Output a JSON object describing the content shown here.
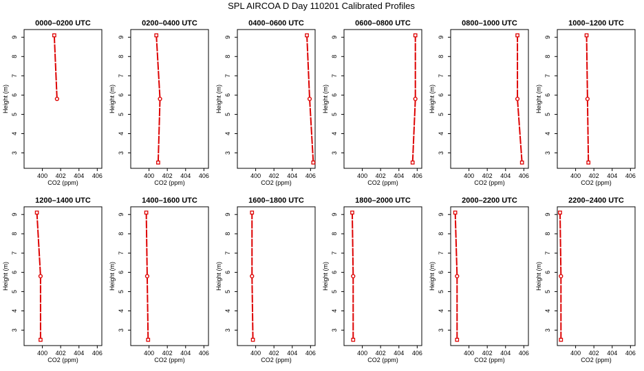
{
  "figure": {
    "title": "SPL AIRCOA D  Day 110201  Calibrated Profiles"
  },
  "style": {
    "line_color": "#dd0000",
    "marker_color": "#dd0000",
    "axis_color": "#000000",
    "background": "#ffffff"
  },
  "chart_data": [
    {
      "type": "line",
      "title": "0000–0200 UTC",
      "xlabel": "CO2 (ppm)",
      "ylabel": "Height (m)",
      "xlim": [
        398,
        406.5
      ],
      "ylim": [
        2.2,
        9.4
      ],
      "x_ticks": [
        400,
        402,
        404,
        406
      ],
      "y_ticks": [
        3,
        4,
        5,
        6,
        7,
        8,
        9
      ],
      "series": [
        {
          "x": [
            401.6,
            401.3
          ],
          "y": [
            5.8,
            9.1
          ],
          "markers": [
            "circle",
            "square"
          ]
        }
      ]
    },
    {
      "type": "line",
      "title": "0200–0400 UTC",
      "xlabel": "CO2 (ppm)",
      "ylabel": "Height (m)",
      "xlim": [
        398,
        406.5
      ],
      "ylim": [
        2.2,
        9.4
      ],
      "x_ticks": [
        400,
        402,
        404,
        406
      ],
      "y_ticks": [
        3,
        4,
        5,
        6,
        7,
        8,
        9
      ],
      "series": [
        {
          "x": [
            401.0,
            401.2,
            400.8
          ],
          "y": [
            2.5,
            5.8,
            9.1
          ],
          "markers": [
            "square",
            "circle",
            "square"
          ]
        }
      ]
    },
    {
      "type": "line",
      "title": "0400–0600 UTC",
      "xlabel": "CO2 (ppm)",
      "ylabel": "Height (m)",
      "xlim": [
        398,
        406.5
      ],
      "ylim": [
        2.2,
        9.4
      ],
      "x_ticks": [
        400,
        402,
        404,
        406
      ],
      "y_ticks": [
        3,
        4,
        5,
        6,
        7,
        8,
        9
      ],
      "series": [
        {
          "x": [
            406.3,
            405.9,
            405.6
          ],
          "y": [
            2.5,
            5.8,
            9.1
          ],
          "markers": [
            "square",
            "circle",
            "square"
          ]
        }
      ]
    },
    {
      "type": "line",
      "title": "0600–0800 UTC",
      "xlabel": "CO2 (ppm)",
      "ylabel": "Height (m)",
      "xlim": [
        398,
        406.5
      ],
      "ylim": [
        2.2,
        9.4
      ],
      "x_ticks": [
        400,
        402,
        404,
        406
      ],
      "y_ticks": [
        3,
        4,
        5,
        6,
        7,
        8,
        9
      ],
      "series": [
        {
          "x": [
            405.5,
            405.8,
            405.8
          ],
          "y": [
            2.5,
            5.8,
            9.1
          ],
          "markers": [
            "square",
            "circle",
            "square"
          ]
        }
      ]
    },
    {
      "type": "line",
      "title": "0800–1000 UTC",
      "xlabel": "CO2 (ppm)",
      "ylabel": "Height (m)",
      "xlim": [
        398,
        406.5
      ],
      "ylim": [
        2.2,
        9.4
      ],
      "x_ticks": [
        400,
        402,
        404,
        406
      ],
      "y_ticks": [
        3,
        4,
        5,
        6,
        7,
        8,
        9
      ],
      "series": [
        {
          "x": [
            405.8,
            405.3,
            405.3
          ],
          "y": [
            2.5,
            5.8,
            9.1
          ],
          "markers": [
            "square",
            "circle",
            "square"
          ]
        }
      ]
    },
    {
      "type": "line",
      "title": "1000–1200 UTC",
      "xlabel": "CO2 (ppm)",
      "ylabel": "Height (m)",
      "xlim": [
        398,
        406.5
      ],
      "ylim": [
        2.2,
        9.4
      ],
      "x_ticks": [
        400,
        402,
        404,
        406
      ],
      "y_ticks": [
        3,
        4,
        5,
        6,
        7,
        8,
        9
      ],
      "series": [
        {
          "x": [
            401.4,
            401.3,
            401.2
          ],
          "y": [
            2.5,
            5.8,
            9.1
          ],
          "markers": [
            "square",
            "circle",
            "square"
          ]
        }
      ]
    },
    {
      "type": "line",
      "title": "1200–1400 UTC",
      "xlabel": "CO2 (ppm)",
      "ylabel": "Height (m)",
      "xlim": [
        398,
        406.5
      ],
      "ylim": [
        2.2,
        9.4
      ],
      "x_ticks": [
        400,
        402,
        404,
        406
      ],
      "y_ticks": [
        3,
        4,
        5,
        6,
        7,
        8,
        9
      ],
      "series": [
        {
          "x": [
            399.8,
            399.8,
            399.4
          ],
          "y": [
            2.5,
            5.8,
            9.1
          ],
          "markers": [
            "square",
            "circle",
            "square"
          ]
        }
      ]
    },
    {
      "type": "line",
      "title": "1400–1600 UTC",
      "xlabel": "CO2 (ppm)",
      "ylabel": "Height (m)",
      "xlim": [
        398,
        406.5
      ],
      "ylim": [
        2.2,
        9.4
      ],
      "x_ticks": [
        400,
        402,
        404,
        406
      ],
      "y_ticks": [
        3,
        4,
        5,
        6,
        7,
        8,
        9
      ],
      "series": [
        {
          "x": [
            399.9,
            399.8,
            399.7
          ],
          "y": [
            2.5,
            5.8,
            9.1
          ],
          "markers": [
            "square",
            "circle",
            "square"
          ]
        }
      ]
    },
    {
      "type": "line",
      "title": "1600–1800 UTC",
      "xlabel": "CO2 (ppm)",
      "ylabel": "Height (m)",
      "xlim": [
        398,
        406.5
      ],
      "ylim": [
        2.2,
        9.4
      ],
      "x_ticks": [
        400,
        402,
        404,
        406
      ],
      "y_ticks": [
        3,
        4,
        5,
        6,
        7,
        8,
        9
      ],
      "series": [
        {
          "x": [
            399.7,
            399.6,
            399.6
          ],
          "y": [
            2.5,
            5.8,
            9.1
          ],
          "markers": [
            "square",
            "circle",
            "square"
          ]
        }
      ]
    },
    {
      "type": "line",
      "title": "1800–2000 UTC",
      "xlabel": "CO2 (ppm)",
      "ylabel": "Height (m)",
      "xlim": [
        398,
        406.5
      ],
      "ylim": [
        2.2,
        9.4
      ],
      "x_ticks": [
        400,
        402,
        404,
        406
      ],
      "y_ticks": [
        3,
        4,
        5,
        6,
        7,
        8,
        9
      ],
      "series": [
        {
          "x": [
            399.0,
            399.0,
            398.9
          ],
          "y": [
            2.5,
            5.8,
            9.1
          ],
          "markers": [
            "square",
            "circle",
            "square"
          ]
        }
      ]
    },
    {
      "type": "line",
      "title": "2000–2200 UTC",
      "xlabel": "CO2 (ppm)",
      "ylabel": "Height (m)",
      "xlim": [
        398,
        406.5
      ],
      "ylim": [
        2.2,
        9.4
      ],
      "x_ticks": [
        400,
        402,
        404,
        406
      ],
      "y_ticks": [
        3,
        4,
        5,
        6,
        7,
        8,
        9
      ],
      "series": [
        {
          "x": [
            398.7,
            398.7,
            398.5
          ],
          "y": [
            2.5,
            5.8,
            9.1
          ],
          "markers": [
            "square",
            "circle",
            "square"
          ]
        }
      ]
    },
    {
      "type": "line",
      "title": "2200–2400 UTC",
      "xlabel": "CO2 (ppm)",
      "ylabel": "Height (m)",
      "xlim": [
        398,
        406.5
      ],
      "ylim": [
        2.2,
        9.4
      ],
      "x_ticks": [
        400,
        402,
        404,
        406
      ],
      "y_ticks": [
        3,
        4,
        5,
        6,
        7,
        8,
        9
      ],
      "series": [
        {
          "x": [
            398.4,
            398.4,
            398.3
          ],
          "y": [
            2.5,
            5.8,
            9.1
          ],
          "markers": [
            "square",
            "circle",
            "square"
          ]
        }
      ]
    }
  ]
}
